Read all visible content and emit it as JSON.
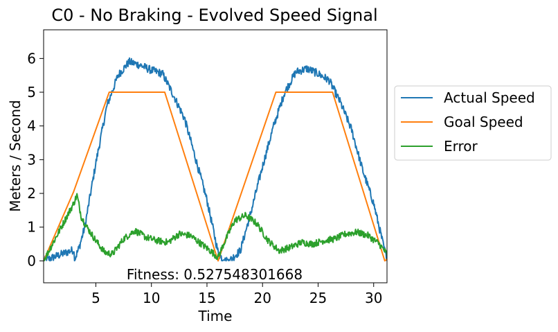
{
  "chart_data": {
    "type": "line",
    "title": "C0 - No Braking - Evolved  Speed Signal",
    "xlabel": "Time",
    "ylabel": "Meters / Second",
    "xlim": [
      0.3,
      31.2
    ],
    "ylim": [
      -0.65,
      6.85
    ],
    "xticks": [
      5,
      10,
      15,
      20,
      25,
      30
    ],
    "yticks": [
      0,
      1,
      2,
      3,
      4,
      5,
      6
    ],
    "grid": false,
    "legend_position": "outside-right",
    "annotation": "Fitness: 0.527548301668",
    "series": [
      {
        "name": "Actual Speed",
        "color": "#1f77b4",
        "noise": 0.12,
        "points": [
          [
            0.3,
            0.0
          ],
          [
            3.0,
            0.33
          ],
          [
            3.1,
            0.05
          ],
          [
            3.5,
            0.4
          ],
          [
            4.0,
            1.0
          ],
          [
            5.0,
            2.9
          ],
          [
            6.0,
            4.6
          ],
          [
            7.0,
            5.5
          ],
          [
            8.0,
            5.9
          ],
          [
            9.0,
            5.8
          ],
          [
            10.0,
            5.65
          ],
          [
            11.0,
            5.55
          ],
          [
            12.0,
            4.9
          ],
          [
            13.0,
            4.2
          ],
          [
            14.0,
            3.0
          ],
          [
            15.0,
            1.8
          ],
          [
            16.0,
            0.25
          ],
          [
            16.5,
            0.0
          ],
          [
            17.0,
            0.0
          ],
          [
            18.0,
            0.3
          ],
          [
            19.0,
            1.5
          ],
          [
            20.0,
            2.8
          ],
          [
            21.0,
            4.0
          ],
          [
            22.0,
            5.0
          ],
          [
            23.0,
            5.6
          ],
          [
            24.0,
            5.7
          ],
          [
            25.0,
            5.55
          ],
          [
            26.0,
            5.35
          ],
          [
            27.0,
            4.7
          ],
          [
            28.0,
            3.9
          ],
          [
            29.0,
            2.7
          ],
          [
            30.0,
            1.7
          ],
          [
            31.2,
            0.0
          ]
        ]
      },
      {
        "name": "Goal Speed",
        "color": "#ff7f0e",
        "noise": 0.0,
        "points": [
          [
            0.3,
            0.0
          ],
          [
            3.0,
            2.05
          ],
          [
            6.2,
            5.0
          ],
          [
            11.2,
            5.0
          ],
          [
            16.0,
            0.0
          ],
          [
            21.2,
            5.0
          ],
          [
            26.3,
            5.0
          ],
          [
            31.0,
            0.0
          ],
          [
            31.2,
            0.05
          ]
        ]
      },
      {
        "name": "Error",
        "color": "#2ca02c",
        "noise": 0.1,
        "points": [
          [
            0.3,
            0.0
          ],
          [
            3.0,
            1.7
          ],
          [
            3.3,
            1.95
          ],
          [
            3.7,
            1.3
          ],
          [
            4.2,
            1.0
          ],
          [
            5.0,
            0.6
          ],
          [
            5.8,
            0.25
          ],
          [
            6.5,
            0.2
          ],
          [
            7.5,
            0.65
          ],
          [
            8.5,
            0.9
          ],
          [
            9.5,
            0.7
          ],
          [
            10.5,
            0.6
          ],
          [
            11.5,
            0.55
          ],
          [
            12.5,
            0.8
          ],
          [
            13.5,
            0.75
          ],
          [
            14.5,
            0.5
          ],
          [
            15.3,
            0.3
          ],
          [
            16.0,
            0.1
          ],
          [
            16.5,
            0.5
          ],
          [
            17.5,
            1.2
          ],
          [
            18.5,
            1.35
          ],
          [
            19.5,
            1.1
          ],
          [
            20.5,
            0.6
          ],
          [
            21.5,
            0.3
          ],
          [
            22.5,
            0.4
          ],
          [
            23.5,
            0.55
          ],
          [
            24.5,
            0.5
          ],
          [
            25.5,
            0.6
          ],
          [
            26.5,
            0.65
          ],
          [
            27.5,
            0.8
          ],
          [
            28.5,
            0.85
          ],
          [
            29.5,
            0.75
          ],
          [
            30.5,
            0.5
          ],
          [
            31.2,
            0.2
          ]
        ]
      }
    ]
  }
}
